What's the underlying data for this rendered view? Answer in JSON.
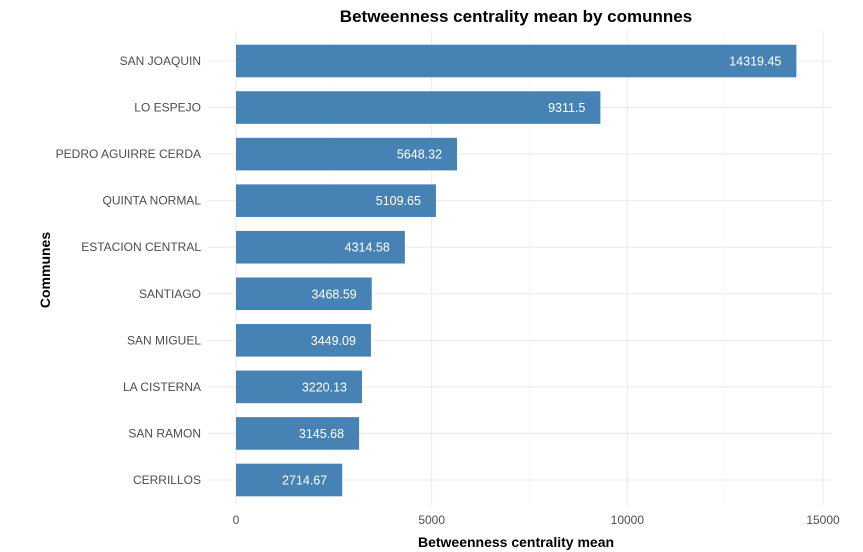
{
  "chart_data": {
    "type": "bar",
    "orientation": "horizontal",
    "title": "Betweenness centrality mean by comunnes",
    "xlabel": "Betweenness centrality mean",
    "ylabel": "Communes",
    "xlim": [
      0,
      15000
    ],
    "x_ticks": [
      0,
      5000,
      10000,
      15000
    ],
    "x_tick_labels": [
      "0",
      "5000",
      "10000",
      "15000"
    ],
    "grid": true,
    "bar_color": "#4682B4",
    "categories": [
      "SAN JOAQUIN",
      "LO ESPEJO",
      "PEDRO AGUIRRE CERDA",
      "QUINTA NORMAL",
      "ESTACION CENTRAL",
      "SANTIAGO",
      "SAN MIGUEL",
      "LA CISTERNA",
      "SAN RAMON",
      "CERRILLOS"
    ],
    "values": [
      14319.45,
      9311.5,
      5648.32,
      5109.65,
      4314.58,
      3468.59,
      3449.09,
      3220.13,
      3145.68,
      2714.67
    ],
    "value_labels": [
      "14319.45",
      "9311.5",
      "5648.32",
      "5109.65",
      "4314.58",
      "3468.59",
      "3449.09",
      "3220.13",
      "3145.68",
      "2714.67"
    ]
  }
}
